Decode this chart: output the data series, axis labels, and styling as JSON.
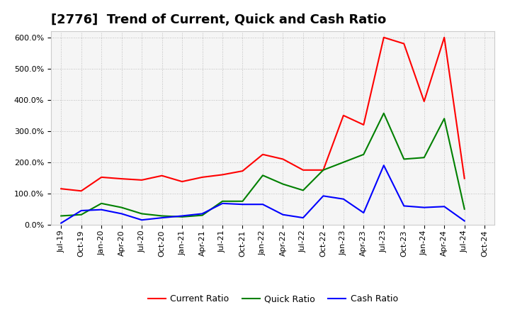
{
  "title": "[2776]  Trend of Current, Quick and Cash Ratio",
  "background_color": "#ffffff",
  "plot_bg_color": "#f5f5f5",
  "grid_color": "#999999",
  "labels": [
    "Jul-19",
    "Oct-19",
    "Jan-20",
    "Apr-20",
    "Jul-20",
    "Oct-20",
    "Jan-21",
    "Apr-21",
    "Jul-21",
    "Oct-21",
    "Jan-22",
    "Apr-22",
    "Jul-22",
    "Oct-22",
    "Jan-23",
    "Apr-23",
    "Jul-23",
    "Oct-23",
    "Jan-24",
    "Apr-24",
    "Jul-24",
    "Oct-24"
  ],
  "current_ratio": [
    115,
    108,
    152,
    147,
    143,
    157,
    138,
    152,
    160,
    172,
    225,
    210,
    175,
    175,
    350,
    320,
    600,
    580,
    395,
    600,
    148,
    null
  ],
  "quick_ratio": [
    28,
    32,
    68,
    55,
    35,
    28,
    25,
    30,
    75,
    75,
    158,
    130,
    110,
    175,
    200,
    225,
    357,
    210,
    215,
    340,
    50,
    null
  ],
  "cash_ratio": [
    5,
    45,
    48,
    35,
    15,
    22,
    28,
    35,
    68,
    65,
    65,
    32,
    22,
    92,
    82,
    38,
    190,
    60,
    55,
    58,
    12,
    null
  ],
  "current_color": "#ff0000",
  "quick_color": "#008000",
  "cash_color": "#0000ff",
  "ylim": [
    0,
    620
  ],
  "yticks": [
    0,
    100,
    200,
    300,
    400,
    500,
    600
  ],
  "legend_labels": [
    "Current Ratio",
    "Quick Ratio",
    "Cash Ratio"
  ],
  "title_fontsize": 13,
  "tick_fontsize": 8,
  "legend_fontsize": 9,
  "linewidth": 1.5
}
